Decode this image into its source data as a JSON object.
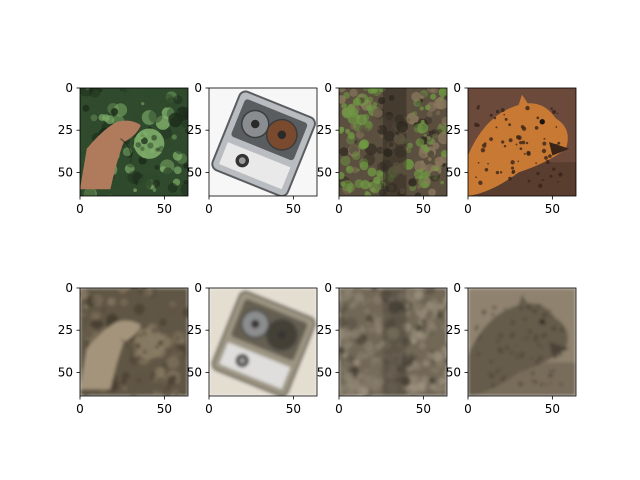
{
  "chart_data": [
    {
      "type": "image",
      "panel": "original-broccoli-hand",
      "content": "broccoli held in hand, green leaves",
      "color_mode": "rgb",
      "xlim": [
        0,
        64
      ],
      "ylim": [
        64,
        0
      ],
      "xticks": [
        0,
        50
      ],
      "yticks": [
        0,
        25,
        50
      ],
      "palette": {
        "bg": "#2f4a2c",
        "accent": "#7fae6a",
        "subject": "#b07a5c",
        "shadow": "#1b2a19"
      }
    },
    {
      "type": "image",
      "panel": "original-tape-recorder",
      "content": "portable reel tape recorder on white background",
      "color_mode": "rgb",
      "xlim": [
        0,
        64
      ],
      "ylim": [
        64,
        0
      ],
      "xticks": [
        0,
        50
      ],
      "yticks": [
        0,
        25,
        50
      ],
      "palette": {
        "bg": "#f7f7f7",
        "accent": "#b9bcc0",
        "subject": "#5a5d60",
        "shadow": "#7a4a2e"
      }
    },
    {
      "type": "image",
      "panel": "original-mossy-bark",
      "content": "tree trunk bark covered in green moss",
      "color_mode": "rgb",
      "xlim": [
        0,
        64
      ],
      "ylim": [
        64,
        0
      ],
      "xticks": [
        0,
        50
      ],
      "yticks": [
        0,
        25,
        50
      ],
      "palette": {
        "bg": "#5b4f3f",
        "accent": "#6f9a43",
        "subject": "#8c7a5f",
        "shadow": "#2b251d"
      }
    },
    {
      "type": "image",
      "panel": "original-leopard",
      "content": "spotted leopard with open mouth, brown background",
      "color_mode": "rgb",
      "xlim": [
        0,
        64
      ],
      "ylim": [
        64,
        0
      ],
      "xticks": [
        0,
        50
      ],
      "yticks": [
        0,
        25,
        50
      ],
      "palette": {
        "bg": "#6b4a3c",
        "accent": "#d89040",
        "subject": "#c87a35",
        "shadow": "#3a2418"
      }
    },
    {
      "type": "image",
      "panel": "reconstruction-broccoli-hand",
      "content": "blurred sepia reconstruction of broccoli held in hand",
      "color_mode": "sepia",
      "xlim": [
        0,
        64
      ],
      "ylim": [
        64,
        0
      ],
      "xticks": [
        0,
        50
      ],
      "yticks": [
        0,
        25,
        50
      ],
      "palette": {
        "bg": "#5c5141",
        "accent": "#8a7d66",
        "subject": "#a89880",
        "shadow": "#3b3327"
      }
    },
    {
      "type": "image",
      "panel": "reconstruction-tape-recorder",
      "content": "blurred sepia reconstruction of tape recorder",
      "color_mode": "sepia",
      "xlim": [
        0,
        64
      ],
      "ylim": [
        64,
        0
      ],
      "xticks": [
        0,
        50
      ],
      "yticks": [
        0,
        25,
        50
      ],
      "palette": {
        "bg": "#eee9dc",
        "accent": "#9b9482",
        "subject": "#5e574a",
        "shadow": "#3a352c"
      }
    },
    {
      "type": "image",
      "panel": "reconstruction-mossy-bark",
      "content": "blurred sepia reconstruction of tree bark",
      "color_mode": "sepia",
      "xlim": [
        0,
        64
      ],
      "ylim": [
        64,
        0
      ],
      "xticks": [
        0,
        50
      ],
      "yticks": [
        0,
        25,
        50
      ],
      "palette": {
        "bg": "#6f6554",
        "accent": "#8d8270",
        "subject": "#a39783",
        "shadow": "#3a342a"
      }
    },
    {
      "type": "image",
      "panel": "reconstruction-leopard",
      "content": "blurred sepia reconstruction of leopard",
      "color_mode": "sepia",
      "xlim": [
        0,
        64
      ],
      "ylim": [
        64,
        0
      ],
      "xticks": [
        0,
        50
      ],
      "yticks": [
        0,
        25,
        50
      ],
      "palette": {
        "bg": "#8a7e6a",
        "accent": "#b3a68f",
        "subject": "#5b5143",
        "shadow": "#3e362c"
      }
    }
  ]
}
